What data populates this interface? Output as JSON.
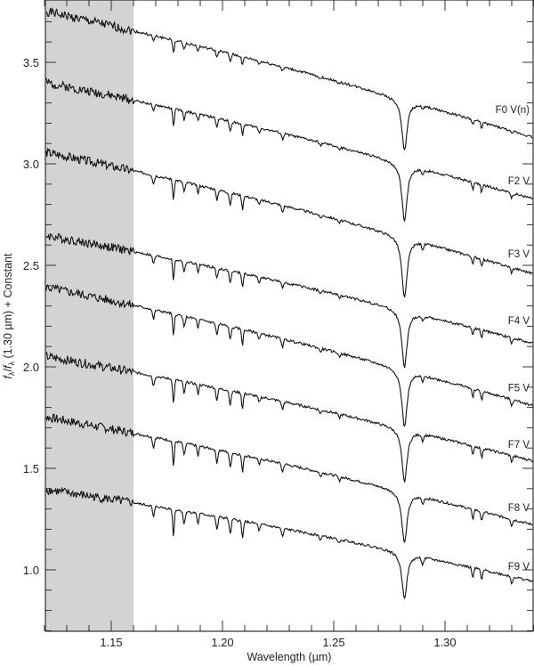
{
  "chart_data": {
    "type": "line",
    "title": "",
    "xlabel": "Wavelength (µm)",
    "ylabel": "f_λ/f_λ (1.30 µm) + Constant",
    "xlim": [
      1.115,
      1.344
    ],
    "ylim": [
      0.69,
      3.8
    ],
    "xticks": [
      1.15,
      1.2,
      1.25,
      1.3
    ],
    "xtick_labels": [
      "1.15",
      "1.20",
      "1.25",
      "1.30"
    ],
    "x_minor_step": 0.01,
    "yticks": [
      1.0,
      1.5,
      2.0,
      2.5,
      3.0,
      3.5
    ],
    "ytick_labels": [
      "1.0",
      "1.5",
      "2.0",
      "2.5",
      "3.0",
      "3.5"
    ],
    "y_minor_step": 0.1,
    "grid": false,
    "shaded_region": {
      "x0": 1.115,
      "x1": 1.16,
      "color": "#d3d3d3"
    },
    "line_color": "#111111",
    "absorption_lines_um": [
      1.169,
      1.178,
      1.1828,
      1.189,
      1.1975,
      1.2035,
      1.209,
      1.2165,
      1.227,
      1.244,
      1.2525,
      1.2818,
      1.29,
      1.3125,
      1.3165,
      1.33
    ],
    "series": [
      {
        "name": "F0 V(n)",
        "start": 3.763,
        "end": 3.118,
        "label_y": 3.25,
        "pab_depth": 0.25,
        "metal": 0.55,
        "noise_seed": 1
      },
      {
        "name": "F2 V",
        "start": 3.412,
        "end": 2.816,
        "label_y": 2.9,
        "pab_depth": 0.28,
        "metal": 0.75,
        "noise_seed": 2
      },
      {
        "name": "F3 V",
        "start": 3.07,
        "end": 2.447,
        "label_y": 2.54,
        "pab_depth": 0.3,
        "metal": 0.85,
        "noise_seed": 3
      },
      {
        "name": "F4 V",
        "start": 2.658,
        "end": 2.105,
        "label_y": 2.21,
        "pab_depth": 0.28,
        "metal": 0.85,
        "noise_seed": 4
      },
      {
        "name": "F5 V",
        "start": 2.404,
        "end": 1.798,
        "label_y": 1.88,
        "pab_depth": 0.28,
        "metal": 0.95,
        "noise_seed": 5
      },
      {
        "name": "F7 V",
        "start": 2.061,
        "end": 1.526,
        "label_y": 1.6,
        "pab_depth": 0.26,
        "metal": 1.0,
        "noise_seed": 6
      },
      {
        "name": "F8 V",
        "start": 1.763,
        "end": 1.211,
        "label_y": 1.29,
        "pab_depth": 0.25,
        "metal": 1.05,
        "noise_seed": 7
      },
      {
        "name": "F9 V",
        "start": 1.404,
        "end": 0.934,
        "label_y": 1.0,
        "pab_depth": 0.22,
        "metal": 1.1,
        "noise_seed": 8
      }
    ]
  }
}
